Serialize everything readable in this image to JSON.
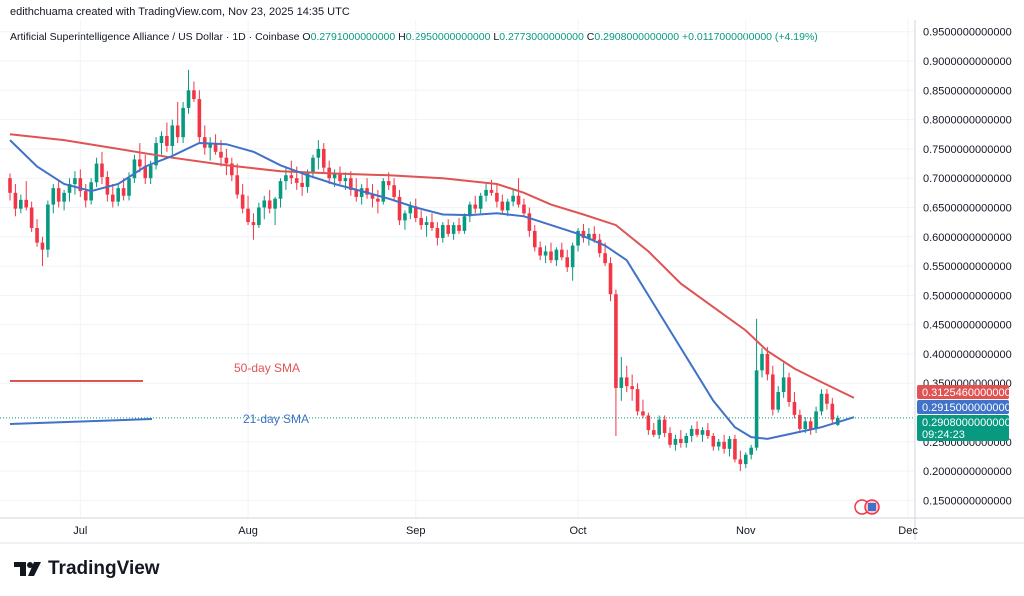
{
  "header": {
    "attribution": "edithchuama created with TradingView.com, Nov 23, 2025 14:35 UTC"
  },
  "symbol": {
    "name": "Artificial Superintelligence Alliance / US Dollar · 1D · Coinbase",
    "o_label": "O",
    "o_value": "0.2791000000000",
    "h_label": "H",
    "h_value": "0.2950000000000",
    "l_label": "L",
    "l_value": "0.2773000000000",
    "c_label": "C",
    "c_value": "0.2908000000000",
    "change": "+0.0117000000000 (+4.19%)"
  },
  "footer": {
    "brand": "TradingView"
  },
  "colors": {
    "up": "#089981",
    "down": "#f23645",
    "sma50": "#e05353",
    "sma21": "#3f72c8",
    "grid": "#f0f3fa"
  },
  "chart_data": {
    "type": "candlestick",
    "title": "Artificial Superintelligence Alliance / US Dollar · 1D · Coinbase",
    "ylim": [
      0.12,
      0.97
    ],
    "y_ticks": [
      {
        "v": 0.95,
        "label": "0.9500000000000"
      },
      {
        "v": 0.9,
        "label": "0.9000000000000"
      },
      {
        "v": 0.85,
        "label": "0.8500000000000"
      },
      {
        "v": 0.8,
        "label": "0.8000000000000"
      },
      {
        "v": 0.75,
        "label": "0.7500000000000"
      },
      {
        "v": 0.7,
        "label": "0.7000000000000"
      },
      {
        "v": 0.65,
        "label": "0.6500000000000"
      },
      {
        "v": 0.6,
        "label": "0.6000000000000"
      },
      {
        "v": 0.55,
        "label": "0.5500000000000"
      },
      {
        "v": 0.5,
        "label": "0.5000000000000"
      },
      {
        "v": 0.45,
        "label": "0.4500000000000"
      },
      {
        "v": 0.4,
        "label": "0.4000000000000"
      },
      {
        "v": 0.35,
        "label": "0.3500000000000"
      },
      {
        "v": 0.25,
        "label": "0.2500000000000"
      },
      {
        "v": 0.2,
        "label": "0.2000000000000"
      },
      {
        "v": 0.15,
        "label": "0.1500000000000"
      }
    ],
    "x_ticks": [
      {
        "index": 13,
        "label": "Jul"
      },
      {
        "index": 44,
        "label": "Aug"
      },
      {
        "index": 75,
        "label": "Sep"
      },
      {
        "index": 105,
        "label": "Oct"
      },
      {
        "index": 136,
        "label": "Nov"
      },
      {
        "index": 166,
        "label": "Dec"
      }
    ],
    "candles": [
      [
        0.7,
        0.708,
        0.662,
        0.675
      ],
      [
        0.675,
        0.69,
        0.635,
        0.648
      ],
      [
        0.648,
        0.672,
        0.64,
        0.663
      ],
      [
        0.663,
        0.695,
        0.645,
        0.65
      ],
      [
        0.65,
        0.66,
        0.608,
        0.615
      ],
      [
        0.615,
        0.63,
        0.583,
        0.59
      ],
      [
        0.59,
        0.6,
        0.55,
        0.578
      ],
      [
        0.578,
        0.662,
        0.565,
        0.655
      ],
      [
        0.655,
        0.69,
        0.64,
        0.683
      ],
      [
        0.683,
        0.695,
        0.65,
        0.66
      ],
      [
        0.66,
        0.68,
        0.645,
        0.675
      ],
      [
        0.675,
        0.7,
        0.66,
        0.69
      ],
      [
        0.69,
        0.712,
        0.672,
        0.7
      ],
      [
        0.7,
        0.715,
        0.668,
        0.678
      ],
      [
        0.678,
        0.69,
        0.65,
        0.662
      ],
      [
        0.662,
        0.7,
        0.655,
        0.693
      ],
      [
        0.693,
        0.735,
        0.685,
        0.725
      ],
      [
        0.725,
        0.745,
        0.69,
        0.702
      ],
      [
        0.702,
        0.712,
        0.66,
        0.672
      ],
      [
        0.672,
        0.69,
        0.65,
        0.66
      ],
      [
        0.66,
        0.69,
        0.652,
        0.683
      ],
      [
        0.683,
        0.7,
        0.662,
        0.67
      ],
      [
        0.67,
        0.71,
        0.662,
        0.7
      ],
      [
        0.7,
        0.74,
        0.692,
        0.732
      ],
      [
        0.732,
        0.76,
        0.71,
        0.72
      ],
      [
        0.72,
        0.74,
        0.69,
        0.7
      ],
      [
        0.7,
        0.73,
        0.69,
        0.722
      ],
      [
        0.722,
        0.77,
        0.715,
        0.76
      ],
      [
        0.76,
        0.78,
        0.74,
        0.772
      ],
      [
        0.772,
        0.795,
        0.745,
        0.755
      ],
      [
        0.755,
        0.8,
        0.74,
        0.79
      ],
      [
        0.79,
        0.83,
        0.76,
        0.77
      ],
      [
        0.77,
        0.83,
        0.76,
        0.82
      ],
      [
        0.82,
        0.885,
        0.81,
        0.85
      ],
      [
        0.85,
        0.865,
        0.83,
        0.835
      ],
      [
        0.835,
        0.85,
        0.76,
        0.77
      ],
      [
        0.77,
        0.79,
        0.74,
        0.752
      ],
      [
        0.752,
        0.77,
        0.73,
        0.76
      ],
      [
        0.76,
        0.775,
        0.74,
        0.745
      ],
      [
        0.745,
        0.765,
        0.72,
        0.735
      ],
      [
        0.735,
        0.75,
        0.705,
        0.725
      ],
      [
        0.725,
        0.735,
        0.695,
        0.705
      ],
      [
        0.705,
        0.725,
        0.665,
        0.672
      ],
      [
        0.672,
        0.69,
        0.64,
        0.648
      ],
      [
        0.648,
        0.67,
        0.62,
        0.625
      ],
      [
        0.625,
        0.64,
        0.595,
        0.62
      ],
      [
        0.62,
        0.658,
        0.615,
        0.65
      ],
      [
        0.65,
        0.67,
        0.63,
        0.662
      ],
      [
        0.662,
        0.68,
        0.64,
        0.648
      ],
      [
        0.648,
        0.668,
        0.62,
        0.665
      ],
      [
        0.665,
        0.7,
        0.65,
        0.695
      ],
      [
        0.695,
        0.72,
        0.68,
        0.705
      ],
      [
        0.705,
        0.73,
        0.69,
        0.7
      ],
      [
        0.7,
        0.72,
        0.68,
        0.692
      ],
      [
        0.692,
        0.71,
        0.67,
        0.685
      ],
      [
        0.685,
        0.715,
        0.675,
        0.708
      ],
      [
        0.708,
        0.74,
        0.7,
        0.735
      ],
      [
        0.735,
        0.765,
        0.715,
        0.75
      ],
      [
        0.75,
        0.76,
        0.71,
        0.718
      ],
      [
        0.718,
        0.73,
        0.69,
        0.7
      ],
      [
        0.7,
        0.715,
        0.685,
        0.708
      ],
      [
        0.708,
        0.72,
        0.69,
        0.695
      ],
      [
        0.695,
        0.71,
        0.68,
        0.7
      ],
      [
        0.7,
        0.712,
        0.67,
        0.68
      ],
      [
        0.68,
        0.7,
        0.66,
        0.668
      ],
      [
        0.668,
        0.69,
        0.655,
        0.683
      ],
      [
        0.683,
        0.7,
        0.665,
        0.672
      ],
      [
        0.672,
        0.69,
        0.65,
        0.665
      ],
      [
        0.665,
        0.68,
        0.64,
        0.66
      ],
      [
        0.66,
        0.7,
        0.655,
        0.695
      ],
      [
        0.695,
        0.71,
        0.68,
        0.688
      ],
      [
        0.688,
        0.7,
        0.66,
        0.668
      ],
      [
        0.668,
        0.68,
        0.62,
        0.628
      ],
      [
        0.628,
        0.645,
        0.612,
        0.64
      ],
      [
        0.64,
        0.66,
        0.63,
        0.652
      ],
      [
        0.652,
        0.665,
        0.625,
        0.632
      ],
      [
        0.632,
        0.645,
        0.612,
        0.62
      ],
      [
        0.62,
        0.635,
        0.6,
        0.625
      ],
      [
        0.625,
        0.64,
        0.61,
        0.615
      ],
      [
        0.615,
        0.625,
        0.585,
        0.598
      ],
      [
        0.598,
        0.625,
        0.59,
        0.62
      ],
      [
        0.62,
        0.63,
        0.6,
        0.605
      ],
      [
        0.605,
        0.625,
        0.595,
        0.62
      ],
      [
        0.62,
        0.632,
        0.605,
        0.61
      ],
      [
        0.61,
        0.64,
        0.605,
        0.635
      ],
      [
        0.635,
        0.66,
        0.625,
        0.655
      ],
      [
        0.655,
        0.67,
        0.64,
        0.648
      ],
      [
        0.648,
        0.675,
        0.64,
        0.67
      ],
      [
        0.67,
        0.69,
        0.66,
        0.68
      ],
      [
        0.68,
        0.697,
        0.67,
        0.675
      ],
      [
        0.675,
        0.69,
        0.65,
        0.66
      ],
      [
        0.66,
        0.672,
        0.64,
        0.645
      ],
      [
        0.645,
        0.665,
        0.635,
        0.66
      ],
      [
        0.66,
        0.68,
        0.652,
        0.67
      ],
      [
        0.67,
        0.7,
        0.65,
        0.655
      ],
      [
        0.655,
        0.665,
        0.635,
        0.64
      ],
      [
        0.64,
        0.65,
        0.6,
        0.61
      ],
      [
        0.61,
        0.62,
        0.575,
        0.582
      ],
      [
        0.582,
        0.592,
        0.56,
        0.568
      ],
      [
        0.568,
        0.585,
        0.555,
        0.575
      ],
      [
        0.575,
        0.59,
        0.555,
        0.56
      ],
      [
        0.56,
        0.582,
        0.55,
        0.578
      ],
      [
        0.578,
        0.59,
        0.56,
        0.565
      ],
      [
        0.565,
        0.578,
        0.54,
        0.548
      ],
      [
        0.548,
        0.59,
        0.525,
        0.585
      ],
      [
        0.585,
        0.615,
        0.575,
        0.61
      ],
      [
        0.61,
        0.622,
        0.59,
        0.598
      ],
      [
        0.598,
        0.615,
        0.585,
        0.605
      ],
      [
        0.605,
        0.618,
        0.59,
        0.595
      ],
      [
        0.595,
        0.605,
        0.565,
        0.572
      ],
      [
        0.572,
        0.59,
        0.55,
        0.555
      ],
      [
        0.555,
        0.565,
        0.49,
        0.502
      ],
      [
        0.502,
        0.51,
        0.26,
        0.342
      ],
      [
        0.342,
        0.395,
        0.32,
        0.36
      ],
      [
        0.36,
        0.38,
        0.335,
        0.345
      ],
      [
        0.345,
        0.365,
        0.32,
        0.34
      ],
      [
        0.34,
        0.35,
        0.295,
        0.302
      ],
      [
        0.302,
        0.322,
        0.29,
        0.295
      ],
      [
        0.295,
        0.3,
        0.262,
        0.27
      ],
      [
        0.27,
        0.282,
        0.258,
        0.262
      ],
      [
        0.262,
        0.295,
        0.255,
        0.288
      ],
      [
        0.288,
        0.295,
        0.258,
        0.265
      ],
      [
        0.265,
        0.275,
        0.24,
        0.245
      ],
      [
        0.245,
        0.262,
        0.235,
        0.255
      ],
      [
        0.255,
        0.27,
        0.24,
        0.248
      ],
      [
        0.248,
        0.265,
        0.24,
        0.26
      ],
      [
        0.26,
        0.278,
        0.25,
        0.272
      ],
      [
        0.272,
        0.285,
        0.258,
        0.262
      ],
      [
        0.262,
        0.275,
        0.25,
        0.27
      ],
      [
        0.27,
        0.282,
        0.255,
        0.26
      ],
      [
        0.26,
        0.265,
        0.235,
        0.242
      ],
      [
        0.242,
        0.255,
        0.235,
        0.25
      ],
      [
        0.25,
        0.262,
        0.23,
        0.238
      ],
      [
        0.238,
        0.26,
        0.225,
        0.255
      ],
      [
        0.255,
        0.262,
        0.215,
        0.22
      ],
      [
        0.22,
        0.235,
        0.2,
        0.212
      ],
      [
        0.212,
        0.232,
        0.205,
        0.228
      ],
      [
        0.228,
        0.245,
        0.22,
        0.24
      ],
      [
        0.24,
        0.46,
        0.235,
        0.372
      ],
      [
        0.372,
        0.41,
        0.36,
        0.4
      ],
      [
        0.4,
        0.412,
        0.355,
        0.365
      ],
      [
        0.365,
        0.38,
        0.295,
        0.305
      ],
      [
        0.305,
        0.345,
        0.3,
        0.335
      ],
      [
        0.335,
        0.385,
        0.325,
        0.36
      ],
      [
        0.36,
        0.368,
        0.31,
        0.318
      ],
      [
        0.318,
        0.335,
        0.29,
        0.296
      ],
      [
        0.296,
        0.305,
        0.265,
        0.272
      ],
      [
        0.272,
        0.292,
        0.265,
        0.285
      ],
      [
        0.285,
        0.292,
        0.262,
        0.272
      ],
      [
        0.272,
        0.31,
        0.265,
        0.302
      ],
      [
        0.302,
        0.34,
        0.295,
        0.332
      ],
      [
        0.332,
        0.34,
        0.305,
        0.315
      ],
      [
        0.315,
        0.325,
        0.282,
        0.288
      ],
      [
        0.279,
        0.295,
        0.277,
        0.291
      ]
    ],
    "series": [
      {
        "name": "50-day SMA",
        "points": [
          [
            0,
            0.775
          ],
          [
            10,
            0.765
          ],
          [
            20,
            0.75
          ],
          [
            30,
            0.735
          ],
          [
            40,
            0.722
          ],
          [
            50,
            0.712
          ],
          [
            60,
            0.708
          ],
          [
            70,
            0.705
          ],
          [
            80,
            0.7
          ],
          [
            90,
            0.69
          ],
          [
            95,
            0.675
          ],
          [
            100,
            0.655
          ],
          [
            106,
            0.638
          ],
          [
            112,
            0.62
          ],
          [
            118,
            0.575
          ],
          [
            124,
            0.52
          ],
          [
            130,
            0.48
          ],
          [
            136,
            0.44
          ],
          [
            140,
            0.405
          ],
          [
            145,
            0.375
          ],
          [
            150,
            0.352
          ],
          [
            156,
            0.325
          ]
        ]
      },
      {
        "name": "21-day SMA",
        "points": [
          [
            0,
            0.765
          ],
          [
            5,
            0.72
          ],
          [
            10,
            0.69
          ],
          [
            15,
            0.678
          ],
          [
            20,
            0.69
          ],
          [
            25,
            0.72
          ],
          [
            30,
            0.738
          ],
          [
            35,
            0.76
          ],
          [
            40,
            0.758
          ],
          [
            45,
            0.745
          ],
          [
            50,
            0.722
          ],
          [
            55,
            0.705
          ],
          [
            60,
            0.69
          ],
          [
            65,
            0.678
          ],
          [
            70,
            0.665
          ],
          [
            75,
            0.65
          ],
          [
            80,
            0.638
          ],
          [
            85,
            0.637
          ],
          [
            90,
            0.64
          ],
          [
            95,
            0.635
          ],
          [
            100,
            0.62
          ],
          [
            105,
            0.605
          ],
          [
            110,
            0.585
          ],
          [
            114,
            0.56
          ],
          [
            118,
            0.5
          ],
          [
            122,
            0.44
          ],
          [
            126,
            0.38
          ],
          [
            130,
            0.32
          ],
          [
            134,
            0.275
          ],
          [
            137,
            0.258
          ],
          [
            140,
            0.255
          ],
          [
            145,
            0.265
          ],
          [
            150,
            0.275
          ],
          [
            156,
            0.292
          ]
        ]
      }
    ],
    "legend_items": [
      {
        "name": "50-day SMA",
        "label": "50-day SMA"
      },
      {
        "name": "21-day SMA",
        "label": "21-day SMA"
      }
    ],
    "price_labels": [
      {
        "name": "sma50-price",
        "value": 0.3125,
        "label": "0.3125460000000",
        "color": "#e05353"
      },
      {
        "name": "sma21-price",
        "value": 0.2915,
        "label": "0.2915000000000",
        "color": "#3f72c8"
      },
      {
        "name": "last-price",
        "value": 0.2908,
        "label": "0.2908000000000",
        "label2": "09:24:23",
        "color": "#089981"
      }
    ]
  }
}
